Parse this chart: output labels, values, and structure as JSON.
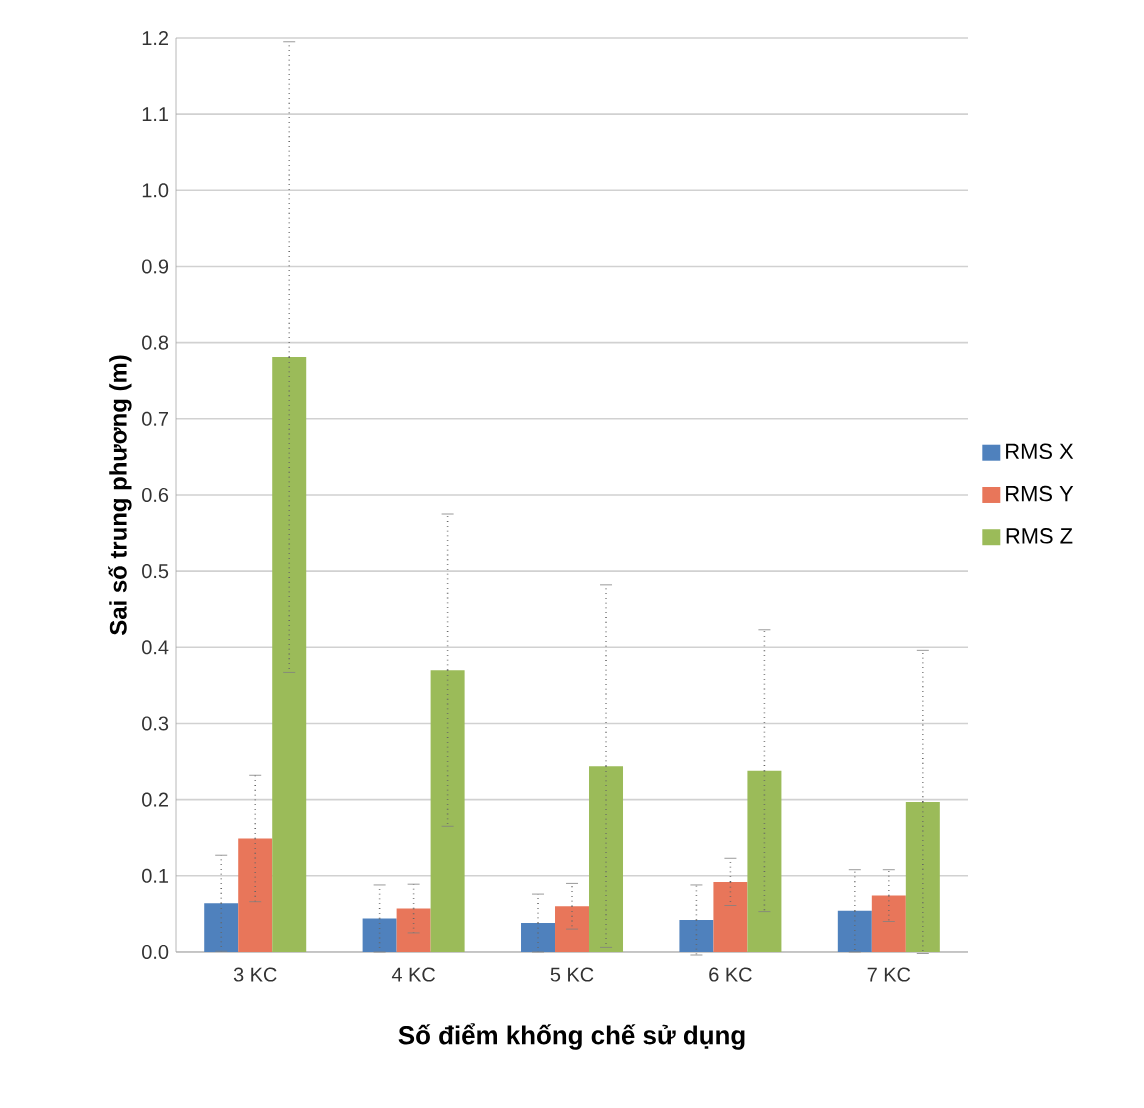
{
  "chart_data": {
    "type": "bar",
    "xlabel": "Số điểm khống chế sử dụng",
    "ylabel": "Sai số trung phương (m)",
    "categories": [
      "3 KC",
      "4 KC",
      "5 KC",
      "6 KC",
      "7 KC"
    ],
    "series": [
      {
        "name": "RMS X",
        "color": "#4f81bd",
        "values": [
          0.064,
          0.044,
          0.038,
          0.042,
          0.054
        ],
        "errors": [
          0.063,
          0.044,
          0.038,
          0.046,
          0.054
        ]
      },
      {
        "name": "RMS Y",
        "color": "#e8765a",
        "values": [
          0.149,
          0.057,
          0.06,
          0.092,
          0.074
        ],
        "errors": [
          0.083,
          0.032,
          0.03,
          0.031,
          0.034
        ]
      },
      {
        "name": "RMS Z",
        "color": "#9bbb59",
        "values": [
          0.781,
          0.37,
          0.244,
          0.238,
          0.197
        ],
        "errors": [
          0.414,
          0.205,
          0.238,
          0.185,
          0.199
        ]
      }
    ],
    "ylim": [
      0,
      1.2
    ],
    "yticks": [
      {
        "value": 0,
        "label": "0.0"
      },
      0.1,
      0.2,
      0.3,
      0.4,
      0.5,
      0.6,
      0.7,
      0.8,
      0.9,
      {
        "value": 1.0,
        "label": "1.0"
      },
      1.1,
      1.2
    ],
    "grid": "y",
    "legend": "right"
  }
}
